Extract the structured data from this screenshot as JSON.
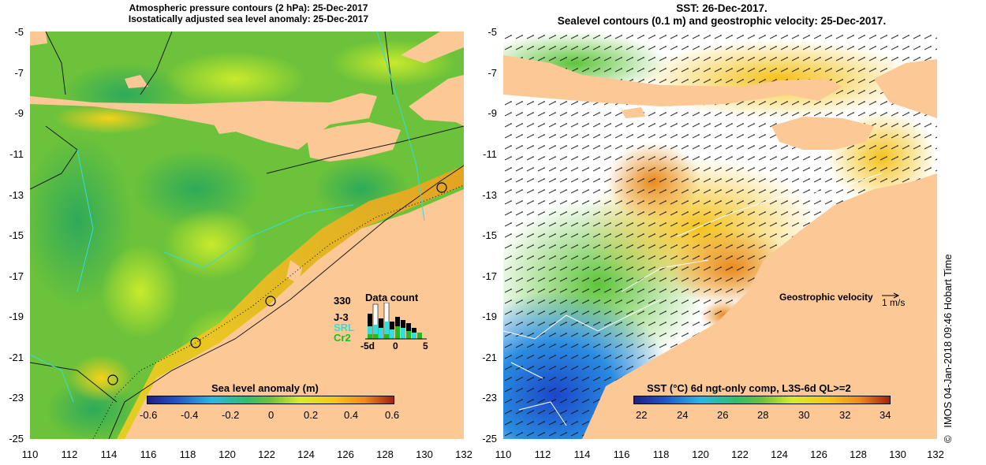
{
  "left_panel": {
    "title_line1": "Atmospheric pressure contours (2 hPa): 25-Dec-2017",
    "title_line2": "Isostatically adjusted sea level anomaly: 25-Dec-2017",
    "colorbar_title": "Sea level anomaly (m)",
    "colorbar_ticks": [
      "-0.6",
      "-0.4",
      "-0.2",
      "0",
      "0.2",
      "0.4",
      "0.6"
    ],
    "data_count": {
      "title": "Data count",
      "max_label": "330",
      "series_labels": [
        "J-3",
        "SRL",
        "Cr2"
      ],
      "series_colors": [
        "#000000",
        "#33dddd",
        "#22bb22"
      ],
      "axis_labels": [
        "-5d",
        "0",
        "5"
      ]
    }
  },
  "right_panel": {
    "title_line1": "SST: 26-Dec-2017.",
    "title_line2": "Sealevel contours (0.1 m) and geostrophic velocity: 25-Dec-2017.",
    "velocity_label": "Geostrophic velocity",
    "velocity_scale": "1 m/s",
    "colorbar_title": "SST (°C) 6d ngt-only comp, L3S-6d QL>=2",
    "colorbar_ticks": [
      "22",
      "24",
      "26",
      "28",
      "30",
      "32",
      "34"
    ]
  },
  "axes": {
    "lat_ticks": [
      "-5",
      "-7",
      "-9",
      "-11",
      "-13",
      "-15",
      "-17",
      "-19",
      "-21",
      "-23",
      "-25"
    ],
    "lon_ticks": [
      "110",
      "112",
      "114",
      "116",
      "118",
      "120",
      "122",
      "124",
      "126",
      "128",
      "130",
      "132"
    ]
  },
  "credit": {
    "copyright": "©",
    "text": "IMOS 04-Jan-2018 09:46 Hobart Time"
  },
  "colors": {
    "land": "#fbc896",
    "island_land": "#f5c08c",
    "ocean_left_base": "#6cc23a",
    "ocean_right_base": "#ffffff"
  }
}
